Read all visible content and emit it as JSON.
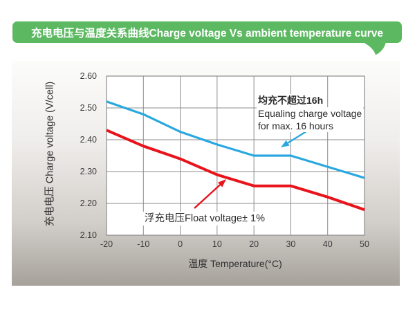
{
  "banner": {
    "title": "充电电压与温度关系曲线Charge voltage Vs ambient temperature curve"
  },
  "colors": {
    "banner_green": "#5cb962",
    "curve_blue": "#29a8e0",
    "curve_red": "#e8131b",
    "grid": "#8c8c8c",
    "plot_background": "#ffffff",
    "panel_gray_bottom": "#a6a19b"
  },
  "chart_data": {
    "type": "line",
    "title": "充电电压与温度关系曲线Charge voltage Vs ambient temperature curve",
    "xlabel": "温度 Temperature(°C)",
    "ylabel": "充电电压 Charge voltage (V/cell)",
    "x": [
      -20,
      -10,
      0,
      10,
      20,
      30,
      40,
      50
    ],
    "xlim": [
      -20,
      50
    ],
    "ylim": [
      2.1,
      2.6
    ],
    "x_tick_labels": [
      "-20",
      "-10",
      "0",
      "10",
      "20",
      "30",
      "40",
      "50"
    ],
    "y_tick_labels": [
      "2.60",
      "2.50",
      "2.40",
      "2.30",
      "2.20",
      "2.10"
    ],
    "grid": true,
    "legend_position": "none",
    "series": [
      {
        "name": "均充不超过16h Equaling charge voltage for max. 16 hours",
        "color": "#29a8e0",
        "values": [
          2.52,
          2.48,
          2.425,
          2.385,
          2.35,
          2.35,
          2.315,
          2.28
        ]
      },
      {
        "name": "浮充电压Float voltage± 1%",
        "color": "#e8131b",
        "values": [
          2.43,
          2.38,
          2.34,
          2.29,
          2.255,
          2.255,
          2.22,
          2.18
        ]
      }
    ]
  },
  "annotations": {
    "equalize": {
      "line1": "均充不超过16h",
      "line2": "Equaling charge voltage",
      "line3": "for max. 16 hours"
    },
    "float": {
      "text": "浮充电压Float voltage± 1%"
    }
  }
}
